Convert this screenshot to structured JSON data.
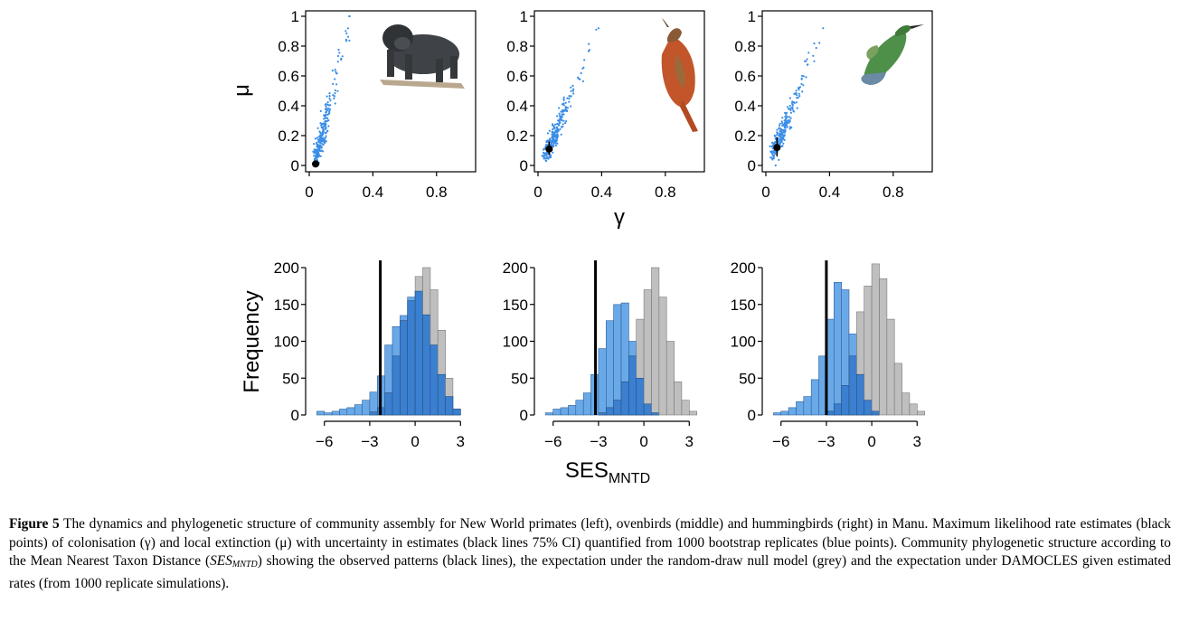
{
  "figure": {
    "scatter_ylabel": "μ",
    "scatter_xlabel": "γ",
    "hist_ylabel": "Frequency",
    "hist_xlabel_main": "SES",
    "hist_xlabel_sub": "MNTD",
    "scatter_x_ticks": [
      "0",
      "0.4",
      "0.8"
    ],
    "scatter_y_ticks": [
      "0",
      "0.2",
      "0.4",
      "0.6",
      "0.8",
      "1"
    ],
    "hist_x_ticks": [
      "−6",
      "−3",
      "0",
      "3"
    ],
    "hist_y_ticks": [
      "0",
      "50",
      "100",
      "150",
      "200"
    ],
    "panel_images": [
      "primate-illustration",
      "ovenbird-illustration",
      "hummingbird-illustration"
    ],
    "colors": {
      "blue_points": "#3a8ee6",
      "blue_bar": "#3a7fd0",
      "blue_bar_light": "#6aa9e8",
      "grey_bar": "#b4b4b4",
      "observed_line": "#000000"
    }
  },
  "caption": {
    "label": "Figure 5",
    "text_1": " The dynamics and phylogenetic structure of community assembly for New World primates (left), ovenbirds (middle) and hummingbirds (right) in Manu. Maximum likelihood rate estimates (black points) of colonisation (γ) and local extinction (μ) with uncertainty in estimates (black lines 75% CI) quantified from 1000 bootstrap replicates (blue points). Community phylogenetic structure according to the Mean Nearest Taxon Distance (",
    "ses_main": "SES",
    "ses_sub": "MNTD",
    "text_2": ") showing the observed patterns (black lines), the expectation under the random-draw null model (grey) and the expectation under DAMOCLES given estimated rates (from 1000 replicate simulations)."
  },
  "chart_data": [
    {
      "type": "scatter",
      "panel": "primates",
      "xlim": [
        0,
        1
      ],
      "ylim": [
        0,
        1
      ],
      "xticks": [
        0,
        0.4,
        0.8
      ],
      "yticks": [
        0,
        0.2,
        0.4,
        0.6,
        0.8,
        1
      ],
      "ml_estimate": {
        "x": 0.04,
        "y": 0.01
      },
      "ci_75": {
        "x": [
          0.03,
          0.05
        ],
        "y": [
          0.0,
          0.03
        ]
      },
      "bootstrap_cloud": {
        "n": 1000,
        "x_center": 0.09,
        "y_center": 0.08,
        "x_max": 0.26,
        "y_max": 1.0
      }
    },
    {
      "type": "scatter",
      "panel": "ovenbirds",
      "xlim": [
        0,
        1
      ],
      "ylim": [
        0,
        1
      ],
      "xticks": [
        0,
        0.4,
        0.8
      ],
      "yticks": [
        0,
        0.2,
        0.4,
        0.6,
        0.8,
        1
      ],
      "ml_estimate": {
        "x": 0.07,
        "y": 0.11
      },
      "ci_75": {
        "x": [
          0.05,
          0.09
        ],
        "y": [
          0.07,
          0.16
        ]
      },
      "bootstrap_cloud": {
        "n": 1000,
        "x_center": 0.1,
        "y_center": 0.18,
        "x_max": 0.38,
        "y_max": 0.92
      }
    },
    {
      "type": "scatter",
      "panel": "hummingbirds",
      "xlim": [
        0,
        1
      ],
      "ylim": [
        0,
        1
      ],
      "xticks": [
        0,
        0.4,
        0.8
      ],
      "yticks": [
        0,
        0.2,
        0.4,
        0.6,
        0.8,
        1
      ],
      "ml_estimate": {
        "x": 0.07,
        "y": 0.12
      },
      "ci_75": {
        "x": [
          0.05,
          0.09
        ],
        "y": [
          0.06,
          0.19
        ]
      },
      "bootstrap_cloud": {
        "n": 1000,
        "x_center": 0.1,
        "y_center": 0.2,
        "x_max": 0.36,
        "y_max": 0.92
      }
    },
    {
      "type": "bar",
      "panel": "primates",
      "xlim": [
        -7,
        4
      ],
      "ylim": [
        0,
        210
      ],
      "bin_left_edges": [
        -6.5,
        -6,
        -5.5,
        -5,
        -4.5,
        -4,
        -3.5,
        -3,
        -2.5,
        -2,
        -1.5,
        -1,
        -0.5,
        0,
        0.5,
        1,
        1.5,
        2,
        2.5
      ],
      "series": [
        {
          "name": "DAMOCLES",
          "values": [
            5,
            3,
            5,
            8,
            10,
            14,
            20,
            31,
            53,
            95,
            120,
            135,
            160,
            168,
            136,
            95,
            55,
            25,
            8
          ]
        },
        {
          "name": "null",
          "values": [
            0,
            0,
            0,
            0,
            0,
            0,
            0,
            4,
            10,
            30,
            80,
            128,
            155,
            188,
            200,
            170,
            115,
            50,
            8
          ]
        }
      ],
      "observed": -2.3
    },
    {
      "type": "bar",
      "panel": "ovenbirds",
      "xlim": [
        -7,
        4
      ],
      "ylim": [
        0,
        210
      ],
      "bin_left_edges": [
        -6.5,
        -6,
        -5.5,
        -5,
        -4.5,
        -4,
        -3.5,
        -3,
        -2.5,
        -2,
        -1.5,
        -1,
        -0.5,
        0,
        0.5,
        1,
        1.5,
        2,
        2.5,
        3
      ],
      "series": [
        {
          "name": "DAMOCLES",
          "values": [
            3,
            8,
            10,
            13,
            20,
            30,
            55,
            90,
            128,
            150,
            152,
            100,
            50,
            15,
            3,
            0,
            0,
            0,
            0,
            0
          ]
        },
        {
          "name": "null",
          "values": [
            0,
            0,
            0,
            0,
            0,
            0,
            0,
            3,
            10,
            20,
            45,
            80,
            130,
            170,
            200,
            160,
            100,
            45,
            20,
            5
          ]
        }
      ],
      "observed": -3.2
    },
    {
      "type": "bar",
      "panel": "hummingbirds",
      "xlim": [
        -7,
        4
      ],
      "ylim": [
        0,
        210
      ],
      "bin_left_edges": [
        -6.5,
        -6,
        -5.5,
        -5,
        -4.5,
        -4,
        -3.5,
        -3,
        -2.5,
        -2,
        -1.5,
        -1,
        -0.5,
        0,
        0.5,
        1,
        1.5,
        2,
        2.5,
        3
      ],
      "series": [
        {
          "name": "DAMOCLES",
          "values": [
            3,
            5,
            10,
            18,
            25,
            48,
            80,
            130,
            180,
            170,
            110,
            55,
            20,
            5,
            0,
            0,
            0,
            0,
            0,
            0
          ]
        },
        {
          "name": "null",
          "values": [
            0,
            0,
            0,
            0,
            0,
            0,
            0,
            5,
            15,
            40,
            80,
            140,
            175,
            205,
            185,
            130,
            70,
            30,
            15,
            5
          ]
        }
      ],
      "observed": -3.0
    }
  ]
}
